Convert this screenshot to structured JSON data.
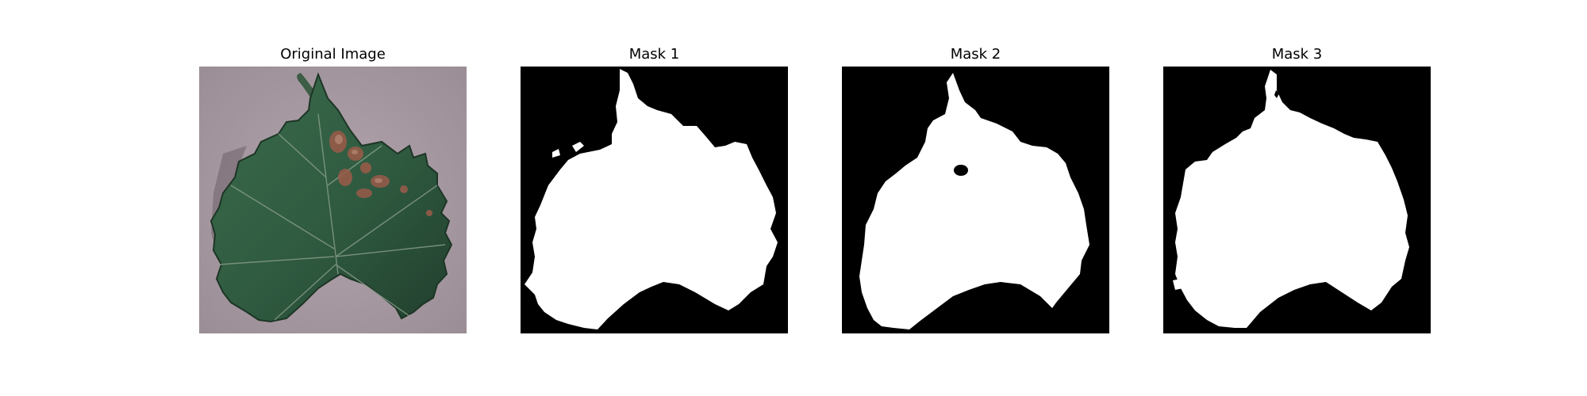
{
  "figure": {
    "panels": [
      {
        "title": "Original Image"
      },
      {
        "title": "Mask 1"
      },
      {
        "title": "Mask 2"
      },
      {
        "title": "Mask 3"
      }
    ]
  },
  "colors": {
    "background": "#ffffff",
    "mask_background": "#000000",
    "mask_foreground": "#ffffff",
    "leaf_green": "#2f5a40",
    "leaf_dark": "#1f3b2a",
    "lesion": "#9b5b4a",
    "paper": "#a89aa2"
  }
}
